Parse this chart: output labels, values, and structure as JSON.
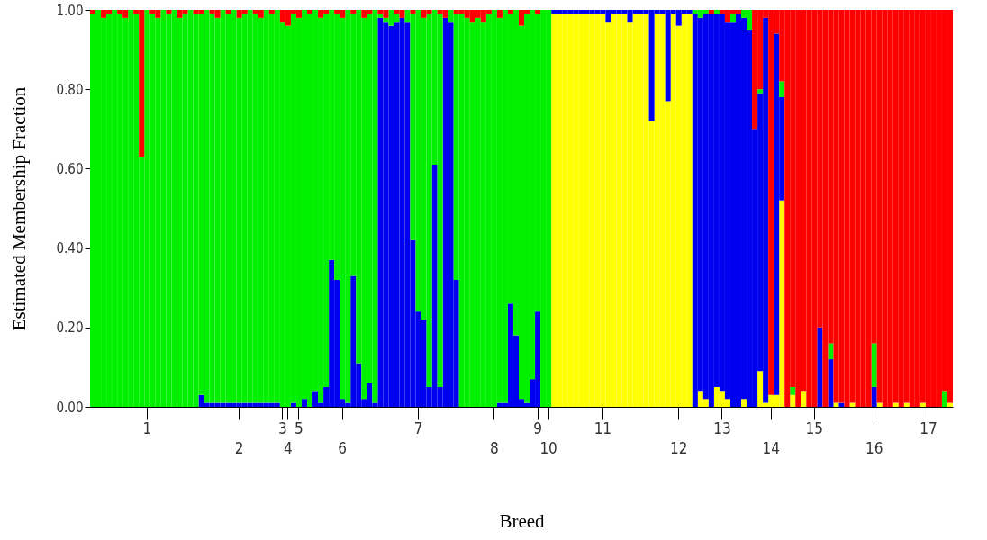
{
  "chart_data": {
    "type": "bar",
    "stacked": true,
    "xlabel": "Breed",
    "ylabel": "Estimated Membership Fraction",
    "ylim": [
      0,
      1
    ],
    "yticks": [
      {
        "value": 0,
        "label": "0.00"
      },
      {
        "value": 0.2,
        "label": "0.20"
      },
      {
        "value": 0.4,
        "label": "0.40"
      },
      {
        "value": 0.6,
        "label": "0.60"
      },
      {
        "value": 0.8,
        "label": "0.80"
      },
      {
        "value": 1,
        "label": "1.00"
      }
    ],
    "categories": [
      null,
      null,
      null,
      null,
      null,
      null,
      null,
      null,
      null,
      null,
      "1",
      null,
      null,
      null,
      null,
      null,
      null,
      null,
      null,
      null,
      null,
      null,
      null,
      null,
      null,
      null,
      null,
      "2",
      null,
      null,
      null,
      null,
      null,
      null,
      null,
      "3",
      "4",
      null,
      "5",
      null,
      null,
      null,
      null,
      null,
      null,
      null,
      "6",
      null,
      null,
      null,
      null,
      null,
      null,
      null,
      null,
      null,
      null,
      null,
      null,
      null,
      "7",
      null,
      null,
      null,
      null,
      null,
      null,
      null,
      null,
      null,
      null,
      null,
      null,
      null,
      "8",
      null,
      null,
      null,
      null,
      null,
      null,
      null,
      "9",
      null,
      "10",
      null,
      null,
      null,
      null,
      null,
      null,
      null,
      null,
      null,
      "11",
      null,
      null,
      null,
      null,
      null,
      null,
      null,
      null,
      null,
      null,
      null,
      null,
      null,
      "12",
      null,
      null,
      null,
      null,
      null,
      null,
      null,
      "13",
      null,
      null,
      null,
      null,
      null,
      null,
      null,
      null,
      "14",
      null,
      null,
      null,
      null,
      null,
      null,
      null,
      "15",
      null,
      null,
      null,
      null,
      null,
      null,
      null,
      null,
      null,
      null,
      "16",
      null,
      null,
      null,
      null,
      null,
      null,
      null,
      null,
      null,
      "17",
      null,
      null,
      null,
      null
    ],
    "series": [
      {
        "color": "#ffff00",
        "values": [
          0,
          0,
          0,
          0,
          0,
          0,
          0,
          0,
          0,
          0,
          0,
          0,
          0,
          0,
          0,
          0,
          0,
          0,
          0,
          0,
          0,
          0,
          0,
          0,
          0,
          0,
          0,
          0,
          0,
          0,
          0,
          0,
          0,
          0,
          0,
          0,
          0,
          0,
          0,
          0,
          0,
          0,
          0,
          0,
          0,
          0,
          0,
          0,
          0,
          0,
          0,
          0,
          0,
          0,
          0,
          0,
          0,
          0,
          0,
          0,
          0,
          0,
          0,
          0,
          0,
          0,
          0,
          0,
          0,
          0,
          0,
          0,
          0,
          0,
          0,
          0,
          0,
          0,
          0,
          0,
          0,
          0,
          0,
          0,
          0,
          0.99,
          0.99,
          0.99,
          0.99,
          0.99,
          0.99,
          0.99,
          0.99,
          0.99,
          0.99,
          0.97,
          0.99,
          0.99,
          0.99,
          0.97,
          0.99,
          0.99,
          0.99,
          0.72,
          0.99,
          0.99,
          0.77,
          0.99,
          0.96,
          0.99,
          0.99,
          0,
          0.04,
          0.02,
          0,
          0.05,
          0.04,
          0.02,
          0,
          0,
          0.02,
          0,
          0,
          0.09,
          0.01,
          0.03,
          0.03,
          0.52,
          0,
          0.03,
          0,
          0.04,
          0,
          0,
          0,
          0,
          0,
          0.01,
          0,
          0,
          0.01,
          0,
          0,
          0,
          0,
          0.01,
          0,
          0,
          0.01,
          0,
          0.01,
          0,
          0,
          0.01,
          0,
          0,
          0,
          0,
          0.01
        ]
      },
      {
        "color": "#0000f0",
        "values": [
          0,
          0,
          0,
          0,
          0,
          0,
          0,
          0,
          0,
          0,
          0,
          0,
          0,
          0,
          0,
          0,
          0,
          0,
          0,
          0,
          0.03,
          0.01,
          0.01,
          0.01,
          0.01,
          0.01,
          0.01,
          0.01,
          0.01,
          0.01,
          0.01,
          0.01,
          0.01,
          0.01,
          0.01,
          0,
          0,
          0.01,
          0,
          0.02,
          0,
          0.04,
          0.01,
          0.05,
          0.37,
          0.32,
          0.02,
          0.01,
          0.33,
          0.11,
          0.02,
          0.06,
          0.01,
          0.98,
          0.97,
          0.96,
          0.97,
          0.98,
          0.97,
          0.42,
          0.24,
          0.22,
          0.05,
          0.61,
          0.05,
          0.98,
          0.97,
          0.32,
          0,
          0,
          0,
          0,
          0,
          0,
          0,
          0.01,
          0.01,
          0.26,
          0.18,
          0.02,
          0.01,
          0.07,
          0.24,
          0,
          0,
          0.01,
          0.01,
          0.01,
          0.01,
          0.01,
          0.01,
          0.01,
          0.01,
          0.01,
          0.01,
          0.03,
          0.01,
          0.01,
          0.01,
          0.03,
          0.01,
          0.01,
          0.01,
          0.28,
          0.01,
          0.01,
          0.23,
          0.01,
          0.04,
          0.01,
          0.01,
          0.99,
          0.94,
          0.97,
          0.99,
          0.94,
          0.95,
          0.95,
          0.97,
          0.99,
          0.96,
          0.95,
          0.7,
          0.7,
          0.97,
          0,
          0.91,
          0.26,
          0,
          0,
          0,
          0,
          0,
          0,
          0.2,
          0,
          0.12,
          0,
          0.01,
          0,
          0,
          0,
          0,
          0,
          0.05,
          0,
          0,
          0,
          0,
          0,
          0,
          0,
          0,
          0,
          0,
          0,
          0,
          0,
          0
        ]
      },
      {
        "color": "#00f000",
        "values": [
          0.99,
          1,
          0.98,
          0.99,
          1,
          0.99,
          0.98,
          1,
          0.99,
          0.63,
          1,
          0.99,
          0.98,
          1,
          0.99,
          1,
          0.98,
          0.99,
          1,
          0.99,
          0.96,
          0.99,
          0.98,
          0.97,
          0.99,
          0.98,
          0.99,
          0.97,
          0.98,
          0.99,
          0.98,
          0.97,
          0.99,
          0.98,
          0.99,
          0.97,
          0.96,
          0.98,
          0.98,
          0.98,
          0.99,
          0.96,
          0.97,
          0.94,
          0.63,
          0.67,
          0.96,
          0.99,
          0.66,
          0.89,
          0.96,
          0.93,
          0.99,
          0.01,
          0.01,
          0.04,
          0.02,
          0,
          0.03,
          0.57,
          0.76,
          0.76,
          0.94,
          0.39,
          0.94,
          0,
          0.03,
          0.67,
          0.99,
          0.98,
          0.97,
          0.98,
          0.97,
          0.99,
          1,
          0.97,
          0.99,
          0.73,
          0.82,
          0.94,
          0.98,
          0.93,
          0.75,
          1,
          1,
          0,
          0,
          0,
          0,
          0,
          0,
          0,
          0,
          0,
          0,
          0,
          0,
          0,
          0,
          0,
          0,
          0,
          0,
          0,
          0,
          0,
          0,
          0,
          0,
          0,
          0,
          0.01,
          0.02,
          0.01,
          0,
          0.01,
          0,
          0,
          0.02,
          0,
          0.02,
          0.05,
          0,
          0.01,
          0,
          0,
          0,
          0.04,
          0,
          0.02,
          0,
          0,
          0,
          0,
          0,
          0,
          0.04,
          0,
          0,
          0,
          0,
          0,
          0,
          0,
          0.11,
          0,
          0,
          0,
          0,
          0,
          0,
          0,
          0,
          0,
          0,
          0,
          0,
          0.04,
          0
        ]
      },
      {
        "color": "#ff0000",
        "values": [
          0.01,
          0,
          0.02,
          0.01,
          0,
          0.01,
          0.02,
          0,
          0.01,
          0.37,
          0,
          0.01,
          0.02,
          0,
          0.01,
          0,
          0.02,
          0.01,
          0,
          0.01,
          0.01,
          0,
          0.01,
          0.02,
          0,
          0.01,
          0,
          0.02,
          0.01,
          0,
          0.01,
          0.02,
          0,
          0.01,
          0,
          0.03,
          0.04,
          0.01,
          0.02,
          0,
          0.01,
          0,
          0.02,
          0.01,
          0,
          0.01,
          0.02,
          0,
          0.01,
          0,
          0.02,
          0.01,
          0,
          0.01,
          0.02,
          0,
          0.01,
          0.02,
          0,
          0.01,
          0,
          0.02,
          0.01,
          0,
          0.01,
          0.02,
          0,
          0.01,
          0.01,
          0.02,
          0.03,
          0.02,
          0.03,
          0.01,
          0,
          0.02,
          0,
          0.01,
          0,
          0.04,
          0.01,
          0,
          0.01,
          0,
          0,
          0,
          0,
          0,
          0,
          0,
          0,
          0,
          0,
          0,
          0,
          0,
          0,
          0,
          0,
          0,
          0,
          0,
          0,
          0,
          0,
          0,
          0,
          0,
          0,
          0,
          0,
          0,
          0,
          0,
          0.01,
          0,
          0.01,
          0.03,
          0.01,
          0.01,
          0,
          0,
          0.3,
          0.2,
          0.02,
          0.97,
          0.06,
          0.18,
          1,
          0.95,
          1,
          0.96,
          1,
          1,
          0.8,
          1,
          0.84,
          0.99,
          0.99,
          1,
          0.99,
          1,
          1,
          1,
          0.84,
          0.99,
          1,
          1,
          0.99,
          1,
          0.99,
          1,
          1,
          0.99,
          1,
          1,
          1,
          0.96,
          0.99
        ]
      }
    ]
  }
}
